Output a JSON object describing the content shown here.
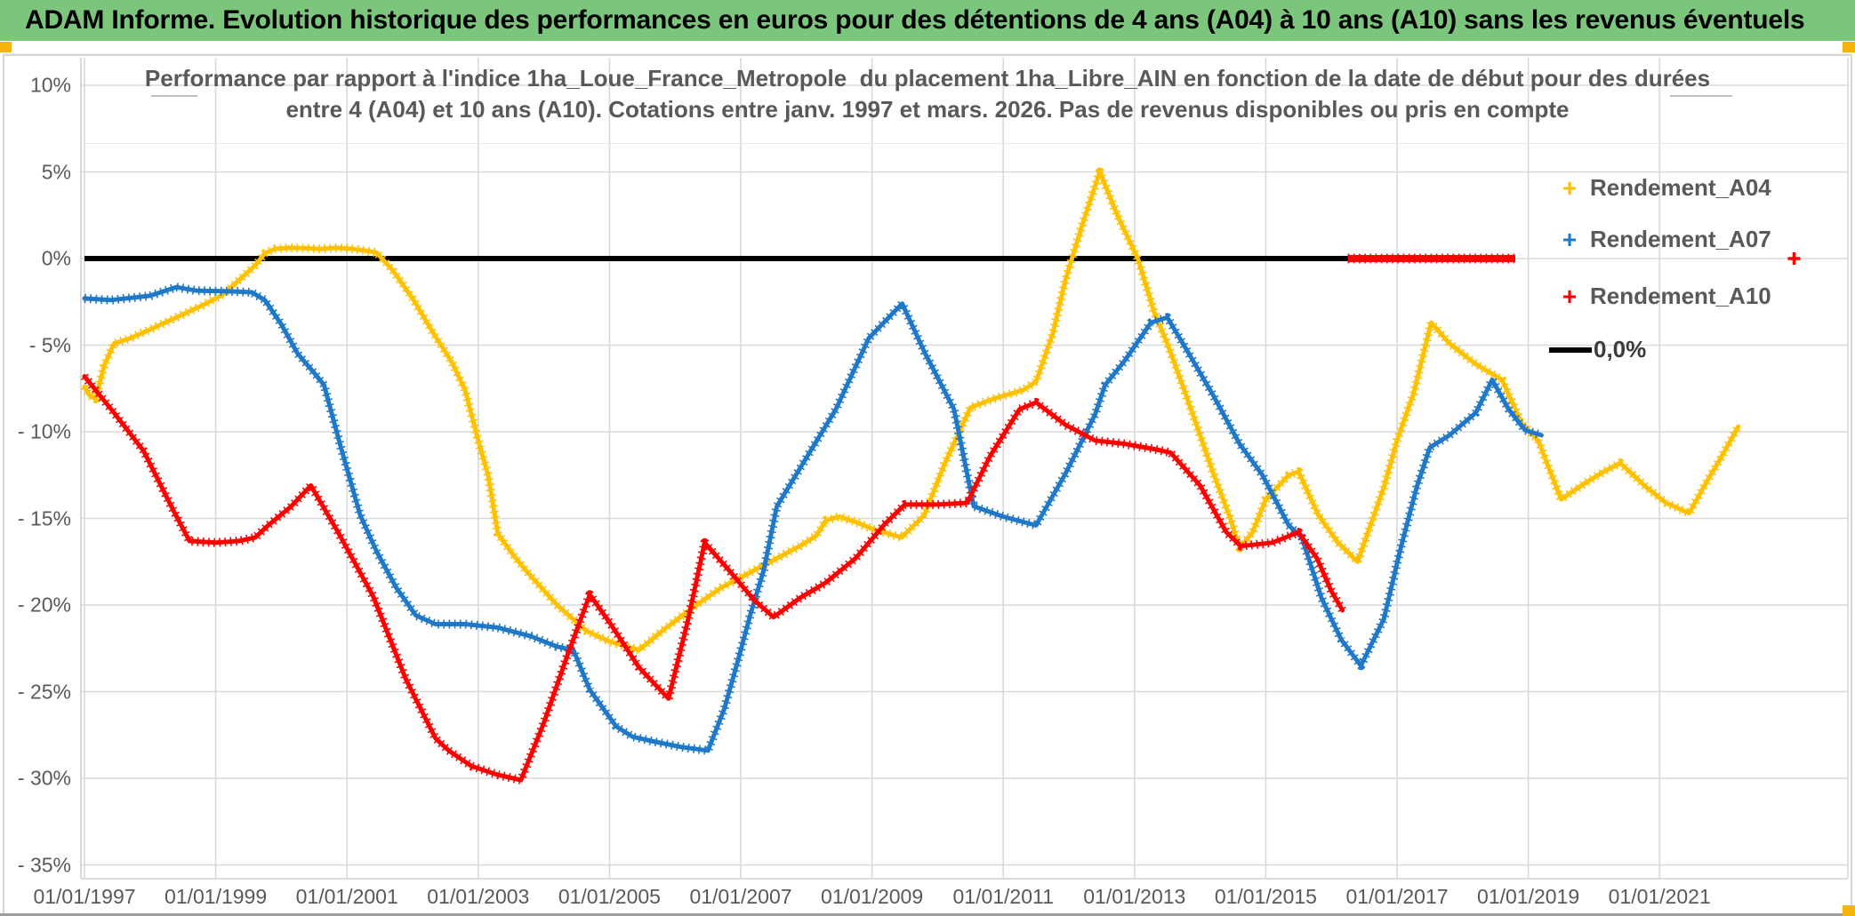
{
  "header": {
    "title": "ADAM Informe. Evolution historique des performances en euros pour des détentions de 4 ans (A04) à 10 ans (A10) sans les revenus éventuels"
  },
  "chart": {
    "title_line1": "Performance par rapport à l'indice 1ha_Loue_France_Metropole  du placement 1ha_Libre_AIN en fonction de la date de début pour des durées",
    "title_line2": "entre 4 (A04) et 10 ans (A10). Cotations entre janv. 1997 et mars. 2026. Pas de revenus disponibles ou pris en compte"
  },
  "legend": {
    "items": [
      {
        "label": "Rendement_A04",
        "marker": "+",
        "color": "#FFC000"
      },
      {
        "label": "Rendement_A07",
        "marker": "+",
        "color": "#1F78C8"
      },
      {
        "label": "Rendement_A10",
        "marker": "+",
        "color": "#FF0000"
      },
      {
        "label": "0,0%",
        "marker": "line",
        "color": "#000000"
      }
    ]
  },
  "chart_data": {
    "type": "line",
    "title": "Performance par rapport à l'indice 1ha_Loue_France_Metropole du placement 1ha_Libre_AIN en fonction de la date de début pour des durées entre 4 (A04) et 10 ans (A10). Cotations entre janv. 1997 et mars. 2026. Pas de revenus disponibles ou pris en compte",
    "grid": true,
    "legend_position": "right",
    "y_axis": {
      "range": [
        -35,
        10
      ],
      "ticks": [
        {
          "value": 10,
          "label": "10%"
        },
        {
          "value": 5,
          "label": "5%"
        },
        {
          "value": 0,
          "label": "0%"
        },
        {
          "value": -5,
          "label": "- 5%"
        },
        {
          "value": -10,
          "label": "- 10%"
        },
        {
          "value": -15,
          "label": "- 15%"
        },
        {
          "value": -20,
          "label": "- 20%"
        },
        {
          "value": -25,
          "label": "- 25%"
        },
        {
          "value": -30,
          "label": "- 30%"
        },
        {
          "value": -35,
          "label": "- 35%"
        }
      ]
    },
    "x_axis": {
      "range_years": [
        1997,
        2022.3
      ],
      "ticks": [
        {
          "year": 1997,
          "label": "01/01/1997"
        },
        {
          "year": 1999,
          "label": "01/01/1999"
        },
        {
          "year": 2001,
          "label": "01/01/2001"
        },
        {
          "year": 2003,
          "label": "01/01/2003"
        },
        {
          "year": 2005,
          "label": "01/01/2005"
        },
        {
          "year": 2007,
          "label": "01/01/2007"
        },
        {
          "year": 2009,
          "label": "01/01/2009"
        },
        {
          "year": 2011,
          "label": "01/01/2011"
        },
        {
          "year": 2013,
          "label": "01/01/2013"
        },
        {
          "year": 2015,
          "label": "01/01/2015"
        },
        {
          "year": 2017,
          "label": "01/01/2017"
        },
        {
          "year": 2019,
          "label": "01/01/2019"
        },
        {
          "year": 2021,
          "label": "01/01/2021"
        }
      ]
    },
    "series": [
      {
        "name": "Rendement_A04",
        "color": "#FFC000",
        "points": [
          [
            1997.0,
            -7.4
          ],
          [
            1997.08,
            -7.9
          ],
          [
            1997.17,
            -8.1
          ],
          [
            1997.3,
            -6.2
          ],
          [
            1997.45,
            -4.9
          ],
          [
            1997.7,
            -4.6
          ],
          [
            1998.0,
            -4.1
          ],
          [
            1998.4,
            -3.4
          ],
          [
            1998.8,
            -2.7
          ],
          [
            1999.1,
            -2.1
          ],
          [
            1999.4,
            -1.1
          ],
          [
            1999.6,
            -0.4
          ],
          [
            1999.75,
            0.3
          ],
          [
            1999.9,
            0.55
          ],
          [
            2000.1,
            0.62
          ],
          [
            2000.35,
            0.6
          ],
          [
            2000.6,
            0.55
          ],
          [
            2000.85,
            0.62
          ],
          [
            2001.1,
            0.55
          ],
          [
            2001.45,
            0.35
          ],
          [
            2001.7,
            -0.7
          ],
          [
            2002.0,
            -2.3
          ],
          [
            2002.3,
            -4.2
          ],
          [
            2002.6,
            -6.0
          ],
          [
            2002.8,
            -7.6
          ],
          [
            2003.0,
            -10.5
          ],
          [
            2003.15,
            -12.5
          ],
          [
            2003.3,
            -15.9
          ],
          [
            2003.55,
            -17.2
          ],
          [
            2003.75,
            -18.1
          ],
          [
            2004.2,
            -20.0
          ],
          [
            2004.65,
            -21.5
          ],
          [
            2005.0,
            -22.1
          ],
          [
            2005.45,
            -22.6
          ],
          [
            2005.8,
            -21.5
          ],
          [
            2006.25,
            -20.2
          ],
          [
            2006.7,
            -19.0
          ],
          [
            2007.1,
            -18.2
          ],
          [
            2007.6,
            -17.2
          ],
          [
            2007.9,
            -16.6
          ],
          [
            2008.15,
            -16.0
          ],
          [
            2008.3,
            -15.1
          ],
          [
            2008.5,
            -14.9
          ],
          [
            2008.75,
            -15.2
          ],
          [
            2009.0,
            -15.6
          ],
          [
            2009.45,
            -16.1
          ],
          [
            2009.8,
            -14.8
          ],
          [
            2010.1,
            -11.9
          ],
          [
            2010.5,
            -8.6
          ],
          [
            2010.85,
            -8.1
          ],
          [
            2011.3,
            -7.6
          ],
          [
            2011.5,
            -7.1
          ],
          [
            2011.75,
            -4.4
          ],
          [
            2011.95,
            -1.2
          ],
          [
            2012.2,
            1.9
          ],
          [
            2012.47,
            5.0
          ],
          [
            2012.75,
            2.4
          ],
          [
            2013.05,
            0.0
          ],
          [
            2013.3,
            -3.1
          ],
          [
            2013.5,
            -4.9
          ],
          [
            2013.75,
            -7.5
          ],
          [
            2014.0,
            -10.2
          ],
          [
            2014.2,
            -12.4
          ],
          [
            2014.45,
            -14.9
          ],
          [
            2014.6,
            -16.7
          ],
          [
            2014.8,
            -15.8
          ],
          [
            2015.0,
            -13.9
          ],
          [
            2015.35,
            -12.5
          ],
          [
            2015.5,
            -12.3
          ],
          [
            2015.8,
            -14.8
          ],
          [
            2016.1,
            -16.4
          ],
          [
            2016.4,
            -17.5
          ],
          [
            2016.8,
            -13.2
          ],
          [
            2017.0,
            -10.5
          ],
          [
            2017.25,
            -7.8
          ],
          [
            2017.52,
            -3.7
          ],
          [
            2017.8,
            -4.9
          ],
          [
            2018.2,
            -6.1
          ],
          [
            2018.6,
            -7.0
          ],
          [
            2018.9,
            -9.5
          ],
          [
            2019.15,
            -10.5
          ],
          [
            2019.5,
            -13.9
          ],
          [
            2019.85,
            -13.0
          ],
          [
            2020.15,
            -12.3
          ],
          [
            2020.4,
            -11.8
          ],
          [
            2020.8,
            -13.2
          ],
          [
            2021.1,
            -14.1
          ],
          [
            2021.45,
            -14.7
          ],
          [
            2021.7,
            -13.0
          ],
          [
            2021.95,
            -11.4
          ],
          [
            2022.2,
            -9.7
          ]
        ]
      },
      {
        "name": "Rendement_A07",
        "color": "#1F78C8",
        "points": [
          [
            1997.0,
            -2.3
          ],
          [
            1997.4,
            -2.4
          ],
          [
            1998.0,
            -2.15
          ],
          [
            1998.4,
            -1.65
          ],
          [
            1998.7,
            -1.85
          ],
          [
            1999.3,
            -1.9
          ],
          [
            1999.55,
            -1.95
          ],
          [
            1999.75,
            -2.4
          ],
          [
            2000.0,
            -3.8
          ],
          [
            2000.25,
            -5.5
          ],
          [
            2000.5,
            -6.6
          ],
          [
            2000.65,
            -7.3
          ],
          [
            2000.9,
            -10.8
          ],
          [
            2001.2,
            -14.8
          ],
          [
            2001.45,
            -16.9
          ],
          [
            2001.75,
            -19.0
          ],
          [
            2002.05,
            -20.6
          ],
          [
            2002.35,
            -21.1
          ],
          [
            2002.8,
            -21.1
          ],
          [
            2003.3,
            -21.3
          ],
          [
            2003.8,
            -21.8
          ],
          [
            2004.2,
            -22.4
          ],
          [
            2004.45,
            -22.6
          ],
          [
            2004.7,
            -24.9
          ],
          [
            2005.1,
            -27.0
          ],
          [
            2005.35,
            -27.6
          ],
          [
            2005.7,
            -27.9
          ],
          [
            2006.1,
            -28.2
          ],
          [
            2006.5,
            -28.4
          ],
          [
            2006.75,
            -26.0
          ],
          [
            2006.95,
            -23.3
          ],
          [
            2007.15,
            -20.5
          ],
          [
            2007.35,
            -18.0
          ],
          [
            2007.55,
            -14.3
          ],
          [
            2008.0,
            -11.5
          ],
          [
            2008.45,
            -8.7
          ],
          [
            2008.95,
            -4.6
          ],
          [
            2009.46,
            -2.6
          ],
          [
            2009.8,
            -5.4
          ],
          [
            2010.25,
            -8.7
          ],
          [
            2010.55,
            -14.3
          ],
          [
            2011.0,
            -14.9
          ],
          [
            2011.5,
            -15.4
          ],
          [
            2011.95,
            -12.4
          ],
          [
            2012.4,
            -9.0
          ],
          [
            2012.55,
            -7.3
          ],
          [
            2012.85,
            -5.9
          ],
          [
            2013.25,
            -3.7
          ],
          [
            2013.5,
            -3.4
          ],
          [
            2013.8,
            -5.3
          ],
          [
            2014.2,
            -7.9
          ],
          [
            2014.6,
            -10.7
          ],
          [
            2014.95,
            -12.5
          ],
          [
            2015.35,
            -15.4
          ],
          [
            2015.55,
            -16.1
          ],
          [
            2015.85,
            -19.6
          ],
          [
            2016.15,
            -22.0
          ],
          [
            2016.45,
            -23.5
          ],
          [
            2016.8,
            -20.8
          ],
          [
            2017.05,
            -16.8
          ],
          [
            2017.3,
            -13.2
          ],
          [
            2017.5,
            -10.9
          ],
          [
            2017.8,
            -10.2
          ],
          [
            2018.2,
            -8.9
          ],
          [
            2018.45,
            -7.0
          ],
          [
            2018.7,
            -8.7
          ],
          [
            2018.95,
            -9.9
          ],
          [
            2019.2,
            -10.2
          ]
        ]
      },
      {
        "name": "Rendement_A10",
        "color": "#FF0000",
        "points": [
          [
            1997.0,
            -6.8
          ],
          [
            1997.45,
            -8.9
          ],
          [
            1997.9,
            -11.1
          ],
          [
            1998.35,
            -14.5
          ],
          [
            1998.6,
            -16.3
          ],
          [
            1999.0,
            -16.4
          ],
          [
            1999.35,
            -16.3
          ],
          [
            1999.6,
            -16.1
          ],
          [
            1999.8,
            -15.4
          ],
          [
            2000.15,
            -14.3
          ],
          [
            2000.45,
            -13.1
          ],
          [
            2000.85,
            -15.7
          ],
          [
            2001.4,
            -19.5
          ],
          [
            2001.9,
            -24.3
          ],
          [
            2002.35,
            -27.7
          ],
          [
            2002.55,
            -28.4
          ],
          [
            2002.9,
            -29.3
          ],
          [
            2003.3,
            -29.8
          ],
          [
            2003.65,
            -30.1
          ],
          [
            2004.0,
            -26.8
          ],
          [
            2004.35,
            -23.0
          ],
          [
            2004.7,
            -19.4
          ],
          [
            2005.0,
            -21.0
          ],
          [
            2005.45,
            -23.6
          ],
          [
            2005.9,
            -25.4
          ],
          [
            2006.2,
            -20.8
          ],
          [
            2006.45,
            -16.4
          ],
          [
            2006.8,
            -17.9
          ],
          [
            2007.2,
            -19.7
          ],
          [
            2007.5,
            -20.7
          ],
          [
            2007.9,
            -19.6
          ],
          [
            2008.3,
            -18.7
          ],
          [
            2008.75,
            -17.3
          ],
          [
            2009.2,
            -15.3
          ],
          [
            2009.5,
            -14.2
          ],
          [
            2010.0,
            -14.2
          ],
          [
            2010.45,
            -14.1
          ],
          [
            2010.8,
            -11.4
          ],
          [
            2011.25,
            -8.7
          ],
          [
            2011.5,
            -8.3
          ],
          [
            2011.95,
            -9.6
          ],
          [
            2012.4,
            -10.5
          ],
          [
            2012.85,
            -10.7
          ],
          [
            2013.3,
            -11.0
          ],
          [
            2013.55,
            -11.2
          ],
          [
            2014.0,
            -13.1
          ],
          [
            2014.4,
            -15.8
          ],
          [
            2014.62,
            -16.6
          ],
          [
            2015.1,
            -16.4
          ],
          [
            2015.5,
            -15.8
          ],
          [
            2015.78,
            -17.3
          ],
          [
            2016.0,
            -19.2
          ],
          [
            2016.17,
            -20.3
          ]
        ]
      }
    ],
    "annotations": {
      "zero_line": {
        "label": "0,0%",
        "color": "#000000",
        "from_year": 1997.0,
        "to_year": 2018.8,
        "value": 0
      },
      "a10_zero_overlay": {
        "color": "#FF0000",
        "from_year": 2016.25,
        "to_year": 2018.8,
        "value": 0
      },
      "a10_isolated_point": {
        "color": "#FF0000",
        "year": 2023.05,
        "value": 0,
        "marker": "+"
      }
    }
  }
}
